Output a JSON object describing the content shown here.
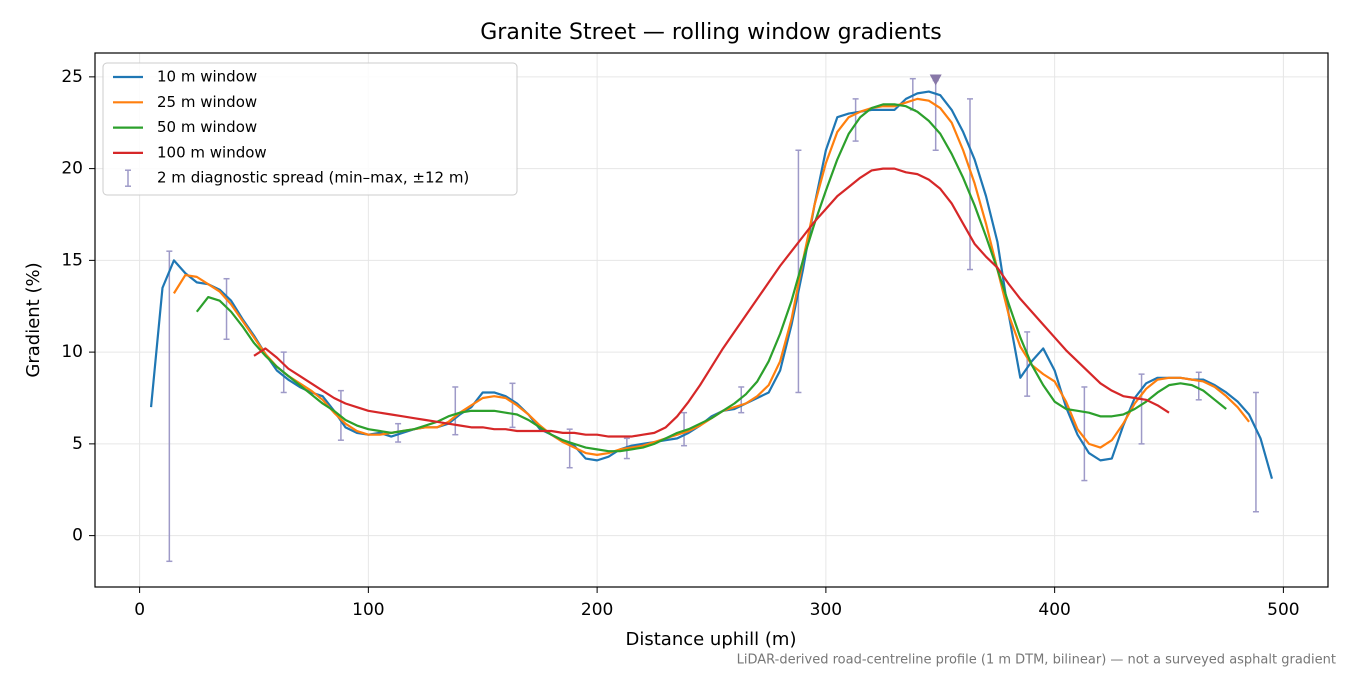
{
  "chart_data": {
    "type": "line",
    "title": "Granite Street — rolling window gradients",
    "x_label": "Distance uphill (m)",
    "y_label": "Gradient (%)",
    "footnote": "LiDAR-derived road-centreline profile (1 m DTM, bilinear) — not a surveyed asphalt gradient",
    "xlim": [
      -19.5,
      519.5
    ],
    "ylim": [
      -2.8,
      26.3
    ],
    "xticks": [
      0,
      100,
      200,
      300,
      400,
      500
    ],
    "yticks": [
      0,
      5,
      10,
      15,
      20,
      25
    ],
    "grid": true,
    "legend": "upper left",
    "x": [
      5,
      10,
      15,
      20,
      25,
      30,
      35,
      40,
      45,
      50,
      55,
      60,
      65,
      70,
      75,
      80,
      85,
      90,
      95,
      100,
      105,
      110,
      115,
      120,
      125,
      130,
      135,
      140,
      145,
      150,
      155,
      160,
      165,
      170,
      175,
      180,
      185,
      190,
      195,
      200,
      205,
      210,
      215,
      220,
      225,
      230,
      235,
      240,
      245,
      250,
      255,
      260,
      265,
      270,
      275,
      280,
      285,
      290,
      295,
      300,
      305,
      310,
      315,
      320,
      325,
      330,
      335,
      340,
      345,
      350,
      355,
      360,
      365,
      370,
      375,
      380,
      385,
      390,
      395,
      400,
      405,
      410,
      415,
      420,
      425,
      430,
      435,
      440,
      445,
      450,
      455,
      460,
      465,
      470,
      475,
      480,
      485,
      490,
      495
    ],
    "series": [
      {
        "name": "10 m window",
        "color": "#1f77b4",
        "values": [
          7.0,
          13.5,
          15.0,
          14.3,
          13.8,
          13.7,
          13.4,
          12.8,
          11.8,
          10.9,
          9.9,
          9.0,
          8.5,
          8.1,
          7.8,
          7.6,
          6.8,
          5.9,
          5.6,
          5.5,
          5.6,
          5.4,
          5.6,
          5.8,
          5.9,
          5.9,
          6.1,
          6.6,
          7.0,
          7.8,
          7.8,
          7.6,
          7.2,
          6.6,
          5.8,
          5.5,
          5.2,
          4.9,
          4.2,
          4.1,
          4.3,
          4.7,
          4.9,
          5.0,
          5.1,
          5.2,
          5.3,
          5.6,
          6.0,
          6.5,
          6.8,
          6.9,
          7.2,
          7.5,
          7.8,
          9.0,
          11.5,
          14.5,
          18.0,
          21.0,
          22.8,
          23.0,
          23.1,
          23.2,
          23.2,
          23.2,
          23.8,
          24.1,
          24.2,
          24.0,
          23.2,
          22.0,
          20.5,
          18.5,
          16.0,
          12.0,
          8.6,
          9.5,
          10.2,
          9.0,
          7.0,
          5.5,
          4.5,
          4.1,
          4.2,
          6.0,
          7.5,
          8.3,
          8.6,
          8.6,
          8.6,
          8.5,
          8.5,
          8.2,
          7.8,
          7.3,
          6.6,
          5.3,
          3.1
        ]
      },
      {
        "name": "25 m window",
        "color": "#ff7f0e",
        "values": [
          null,
          null,
          13.2,
          14.2,
          14.1,
          13.7,
          13.3,
          12.6,
          11.7,
          10.8,
          9.9,
          9.2,
          8.7,
          8.3,
          7.9,
          7.4,
          6.7,
          6.1,
          5.7,
          5.5,
          5.5,
          5.6,
          5.7,
          5.8,
          5.9,
          5.9,
          6.2,
          6.7,
          7.1,
          7.5,
          7.6,
          7.5,
          7.1,
          6.6,
          6.0,
          5.5,
          5.1,
          4.8,
          4.5,
          4.4,
          4.5,
          4.7,
          4.8,
          4.9,
          5.1,
          5.3,
          5.5,
          5.7,
          6.0,
          6.4,
          6.8,
          7.0,
          7.2,
          7.6,
          8.2,
          9.5,
          11.8,
          15.0,
          18.0,
          20.3,
          22.0,
          22.8,
          23.1,
          23.3,
          23.4,
          23.4,
          23.6,
          23.8,
          23.7,
          23.3,
          22.5,
          21.0,
          19.2,
          17.0,
          14.5,
          12.0,
          10.3,
          9.3,
          8.8,
          8.4,
          7.3,
          5.8,
          5.0,
          4.8,
          5.2,
          6.1,
          7.2,
          8.0,
          8.5,
          8.6,
          8.6,
          8.5,
          8.4,
          8.1,
          7.6,
          7.0,
          6.2,
          null,
          null
        ]
      },
      {
        "name": "50 m window",
        "color": "#2ca02c",
        "values": [
          null,
          null,
          null,
          null,
          12.2,
          13.0,
          12.8,
          12.2,
          11.4,
          10.5,
          9.8,
          9.2,
          8.7,
          8.2,
          7.7,
          7.2,
          6.8,
          6.3,
          6.0,
          5.8,
          5.7,
          5.6,
          5.7,
          5.8,
          6.0,
          6.2,
          6.5,
          6.7,
          6.8,
          6.8,
          6.8,
          6.7,
          6.6,
          6.3,
          5.9,
          5.5,
          5.2,
          5.0,
          4.8,
          4.7,
          4.6,
          4.6,
          4.7,
          4.8,
          5.0,
          5.3,
          5.6,
          5.8,
          6.1,
          6.4,
          6.8,
          7.2,
          7.7,
          8.4,
          9.5,
          11.0,
          12.8,
          15.0,
          17.0,
          18.8,
          20.5,
          21.9,
          22.8,
          23.3,
          23.5,
          23.5,
          23.4,
          23.1,
          22.6,
          21.9,
          20.8,
          19.5,
          18.0,
          16.3,
          14.5,
          12.6,
          10.8,
          9.3,
          8.2,
          7.3,
          6.9,
          6.8,
          6.7,
          6.5,
          6.5,
          6.6,
          6.9,
          7.3,
          7.8,
          8.2,
          8.3,
          8.2,
          7.9,
          7.4,
          6.9,
          null,
          null,
          null,
          null
        ]
      },
      {
        "name": "100 m window",
        "color": "#d62728",
        "values": [
          null,
          null,
          null,
          null,
          null,
          null,
          null,
          null,
          null,
          9.8,
          10.2,
          9.7,
          9.1,
          8.7,
          8.3,
          7.9,
          7.5,
          7.2,
          7.0,
          6.8,
          6.7,
          6.6,
          6.5,
          6.4,
          6.3,
          6.2,
          6.1,
          6.0,
          5.9,
          5.9,
          5.8,
          5.8,
          5.7,
          5.7,
          5.7,
          5.7,
          5.6,
          5.6,
          5.5,
          5.5,
          5.4,
          5.4,
          5.4,
          5.5,
          5.6,
          5.9,
          6.5,
          7.3,
          8.2,
          9.2,
          10.2,
          11.1,
          12.0,
          12.9,
          13.8,
          14.7,
          15.5,
          16.3,
          17.1,
          17.8,
          18.5,
          19.0,
          19.5,
          19.9,
          20.0,
          20.0,
          19.8,
          19.7,
          19.4,
          18.9,
          18.1,
          17.0,
          15.9,
          15.2,
          14.6,
          13.7,
          12.9,
          12.2,
          11.5,
          10.8,
          10.1,
          9.5,
          8.9,
          8.3,
          7.9,
          7.6,
          7.5,
          7.4,
          7.1,
          6.7,
          null,
          null,
          null,
          null,
          null,
          null,
          null,
          null,
          null
        ]
      }
    ],
    "spread": {
      "name": "2 m diagnostic spread (min–max, ±12 m)",
      "color": "#9e9ac8",
      "x": [
        13,
        38,
        63,
        88,
        113,
        138,
        163,
        188,
        213,
        238,
        263,
        288,
        313,
        338,
        348,
        363,
        388,
        413,
        438,
        463,
        488
      ],
      "low": [
        -1.4,
        10.7,
        7.8,
        5.2,
        5.1,
        5.5,
        5.9,
        3.7,
        4.2,
        4.9,
        6.7,
        7.8,
        21.5,
        23.2,
        21.0,
        14.5,
        7.6,
        3.0,
        5.0,
        7.4,
        1.3
      ],
      "high": [
        15.5,
        14.0,
        10.0,
        7.9,
        6.1,
        8.1,
        8.3,
        5.8,
        5.3,
        6.7,
        8.1,
        21.0,
        23.8,
        24.9,
        24.8,
        23.8,
        11.1,
        8.1,
        8.8,
        8.9,
        7.8
      ]
    },
    "peak": {
      "x": 348,
      "y": 24.8,
      "color": "#8878a8"
    }
  }
}
